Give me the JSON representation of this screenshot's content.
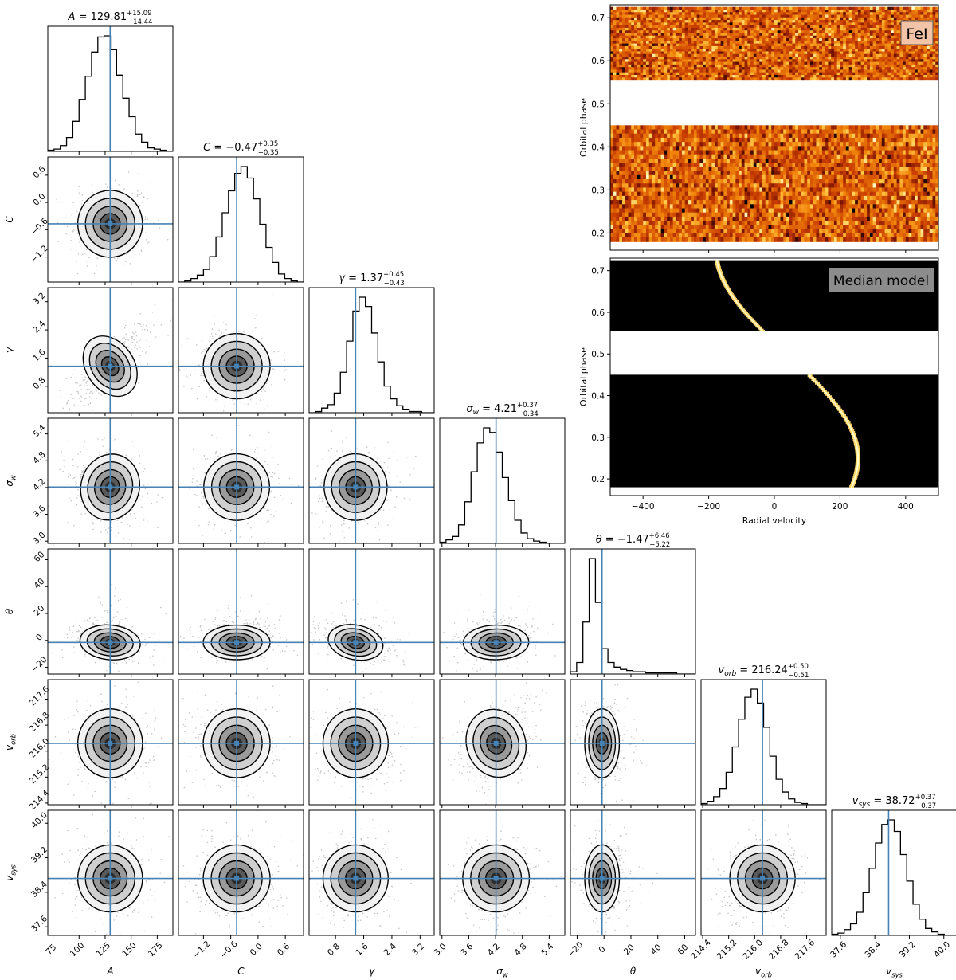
{
  "colors": {
    "truth_line": "#4682b4",
    "hist_line": "#000000",
    "contour_line": "#000000",
    "scatter": "#9a9a9a",
    "heat_low": "#000000",
    "heat_high": "#ffffd0",
    "gap": "#ffffff"
  },
  "chart_data": [
    {
      "type": "corner",
      "parameters": [
        {
          "symbol": "A",
          "median": 129.81,
          "err_plus": 15.09,
          "err_minus": 14.44,
          "range": [
            70,
            190
          ],
          "ticks": [
            75,
            100,
            125,
            150,
            175
          ],
          "tick_labels": [
            "75",
            "100",
            "125",
            "150",
            "175"
          ],
          "title": {
            "lhs": "A",
            "val": " = 129.81",
            "sup": "+15.09",
            "sub": "−14.44"
          },
          "axis_label": {
            "base": "A",
            "sub": ""
          },
          "hist_counts": [
            0.01,
            0.02,
            0.05,
            0.12,
            0.26,
            0.45,
            0.65,
            0.86,
            0.99,
            1.0,
            0.88,
            0.66,
            0.46,
            0.3,
            0.15,
            0.08,
            0.03,
            0.02,
            0.01,
            0.0
          ]
        },
        {
          "symbol": "C",
          "median": -0.47,
          "err_plus": 0.35,
          "err_minus": 0.35,
          "range": [
            -1.75,
            1.0
          ],
          "ticks": [
            -1.2,
            -0.6,
            0.0,
            0.6
          ],
          "tick_labels": [
            "−1.2",
            "−0.6",
            "0.0",
            "0.6"
          ],
          "title": {
            "lhs": "C",
            "val": " = −0.47",
            "sup": "+0.35",
            "sub": "−0.35"
          },
          "axis_label": {
            "base": "C",
            "sub": ""
          },
          "hist_counts": [
            0.0,
            0.01,
            0.03,
            0.06,
            0.11,
            0.22,
            0.39,
            0.6,
            0.79,
            0.94,
            1.0,
            0.9,
            0.72,
            0.5,
            0.3,
            0.17,
            0.07,
            0.03,
            0.01,
            0.0
          ]
        },
        {
          "symbol": "γ",
          "median": 1.37,
          "err_plus": 0.45,
          "err_minus": 0.43,
          "range": [
            0.05,
            3.6
          ],
          "ticks": [
            0.8,
            1.6,
            2.4,
            3.2
          ],
          "tick_labels": [
            "0.8",
            "1.6",
            "2.4",
            "3.2"
          ],
          "title": {
            "lhs": "γ",
            "val": " = 1.37",
            "sup": "+0.45",
            "sub": "−0.43"
          },
          "axis_label": {
            "base": "γ",
            "sub": ""
          },
          "hist_counts": [
            0.0,
            0.01,
            0.04,
            0.07,
            0.17,
            0.35,
            0.62,
            0.88,
            1.0,
            0.92,
            0.69,
            0.44,
            0.23,
            0.12,
            0.06,
            0.03,
            0.01,
            0.01,
            0.0,
            0.0
          ]
        },
        {
          "symbol": "σ_w",
          "median": 4.21,
          "err_plus": 0.37,
          "err_minus": 0.34,
          "range": [
            2.95,
            5.75
          ],
          "ticks": [
            3.0,
            3.6,
            4.2,
            4.8,
            5.4
          ],
          "tick_labels": [
            "3.0",
            "3.6",
            "4.2",
            "4.8",
            "5.4"
          ],
          "title": {
            "lhs": "σ",
            "lhs_sub": "w",
            "val": " = 4.21",
            "sup": "+0.37",
            "sub": "−0.34"
          },
          "axis_label": {
            "base": "σ",
            "sub": "w"
          },
          "hist_counts": [
            0.01,
            0.03,
            0.06,
            0.16,
            0.36,
            0.62,
            0.87,
            1.0,
            0.96,
            0.79,
            0.57,
            0.37,
            0.2,
            0.09,
            0.04,
            0.02,
            0.01,
            0.0,
            0.0,
            0.0
          ]
        },
        {
          "symbol": "θ",
          "median": -1.47,
          "err_plus": 6.46,
          "err_minus": 5.22,
          "range": [
            -25,
            68
          ],
          "ticks": [
            -20,
            0,
            20,
            40,
            60
          ],
          "tick_labels": [
            "−20",
            "0",
            "20",
            "40",
            "60"
          ],
          "title": {
            "lhs": "θ",
            "val": " = −1.47",
            "sup": "+6.46",
            "sub": "−5.22"
          },
          "axis_label": {
            "base": "θ",
            "sub": ""
          },
          "hist_counts": [
            0.02,
            0.1,
            0.45,
            1.0,
            0.62,
            0.22,
            0.1,
            0.06,
            0.04,
            0.03,
            0.02,
            0.02,
            0.01,
            0.01,
            0.01,
            0.01,
            0.01,
            0.0,
            0.0,
            0.0
          ]
        },
        {
          "symbol": "v_orb",
          "median": 216.24,
          "err_plus": 0.5,
          "err_minus": 0.51,
          "range": [
            214.35,
            218.2
          ],
          "ticks": [
            214.4,
            215.2,
            216.0,
            216.8,
            217.6
          ],
          "tick_labels": [
            "214.4",
            "215.2",
            "216.0",
            "216.8",
            "217.6"
          ],
          "title": {
            "lhs": "v",
            "lhs_sub": "orb",
            "val": " = 216.24",
            "sup": "+0.50",
            "sub": "−0.51"
          },
          "axis_label": {
            "base": "v",
            "sub": "orb"
          },
          "hist_counts": [
            0.01,
            0.03,
            0.07,
            0.14,
            0.28,
            0.5,
            0.74,
            0.93,
            1.0,
            0.88,
            0.67,
            0.42,
            0.22,
            0.11,
            0.05,
            0.02,
            0.01,
            0.0,
            0.0,
            0.0
          ]
        },
        {
          "symbol": "v_sys",
          "median": 38.72,
          "err_plus": 0.37,
          "err_minus": 0.37,
          "range": [
            37.4,
            40.3
          ],
          "ticks": [
            37.6,
            38.4,
            39.2,
            40.0
          ],
          "tick_labels": [
            "37.6",
            "38.4",
            "39.2",
            "40.0"
          ],
          "title": {
            "lhs": "v",
            "lhs_sub": "sys",
            "val": " = 38.72",
            "sup": "+0.37",
            "sub": "−0.37"
          },
          "axis_label": {
            "base": "v",
            "sub": "sys"
          },
          "hist_counts": [
            0.01,
            0.02,
            0.05,
            0.1,
            0.2,
            0.37,
            0.58,
            0.8,
            0.96,
            1.0,
            0.9,
            0.7,
            0.47,
            0.27,
            0.14,
            0.06,
            0.03,
            0.01,
            0.0,
            0.0
          ]
        }
      ],
      "correlations": [
        [
          0,
          0,
          0,
          0,
          0,
          0,
          0
        ],
        [
          0,
          0,
          0,
          0,
          0,
          0,
          0
        ],
        [
          0.78,
          0,
          0,
          0,
          0,
          0,
          0
        ],
        [
          -0.3,
          0.05,
          0.1,
          0,
          0,
          0,
          0
        ],
        [
          -0.2,
          0,
          -0.45,
          0.05,
          0,
          0,
          0
        ],
        [
          0,
          0,
          0,
          0.35,
          0,
          0,
          0
        ],
        [
          0,
          0,
          0,
          0,
          0,
          0.15,
          0
        ]
      ]
    },
    {
      "type": "heatmap",
      "label": "FeI",
      "xlabel": "",
      "ylabel": "Orbital phase",
      "xlim": [
        -500,
        500
      ],
      "ylim": [
        0.16,
        0.73
      ],
      "yticks": [
        0.2,
        0.3,
        0.4,
        0.5,
        0.6,
        0.7
      ],
      "ytick_labels": [
        "0.2",
        "0.3",
        "0.4",
        "0.5",
        "0.6",
        "0.7"
      ],
      "data_phase_ranges": [
        [
          0.18,
          0.45
        ],
        [
          0.555,
          0.725
        ]
      ],
      "content": "noisy cross-correlation map"
    },
    {
      "type": "heatmap",
      "label": "Median model",
      "xlabel": "Radial velocity",
      "ylabel": "Orbital phase",
      "xlim": [
        -500,
        500
      ],
      "ylim": [
        0.16,
        0.73
      ],
      "xticks": [
        -400,
        -200,
        0,
        200,
        400
      ],
      "xtick_labels": [
        "−400",
        "−200",
        "0",
        "200",
        "400"
      ],
      "yticks": [
        0.2,
        0.3,
        0.4,
        0.5,
        0.6,
        0.7
      ],
      "ytick_labels": [
        "0.2",
        "0.3",
        "0.4",
        "0.5",
        "0.6",
        "0.7"
      ],
      "data_phase_ranges": [
        [
          0.18,
          0.45
        ],
        [
          0.555,
          0.725
        ]
      ],
      "model_trail": {
        "v_sys_kms": 38.72,
        "k_p_kms": 216.24,
        "phase_offset": 0.0
      }
    }
  ]
}
